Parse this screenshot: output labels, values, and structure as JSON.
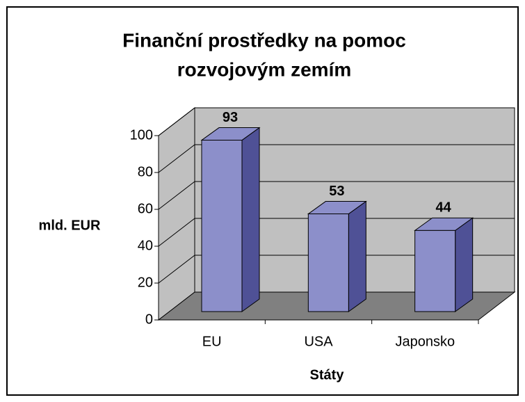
{
  "chart_data": {
    "type": "bar",
    "title": "Finanční prostředky na pomoc",
    "subtitle": "rozvojovým zemím",
    "categories": [
      "EU",
      "USA",
      "Japonsko"
    ],
    "values": [
      93,
      53,
      44
    ],
    "color": "#8c8fca",
    "side_color": "#4f5196",
    "ylabel": "mld. EUR",
    "xlabel": "Státy",
    "ylim": [
      0,
      100
    ],
    "yticks": [
      0,
      20,
      40,
      60,
      80,
      100
    ],
    "grid": true
  }
}
